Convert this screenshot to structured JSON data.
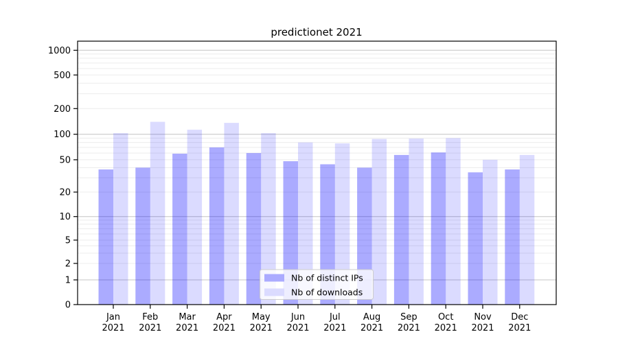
{
  "chart_data": {
    "type": "bar",
    "title": "predictionet 2021",
    "categories": [
      "Jan",
      "Feb",
      "Mar",
      "Apr",
      "May",
      "Jun",
      "Jul",
      "Aug",
      "Sep",
      "Oct",
      "Nov",
      "Dec"
    ],
    "category_year": "2021",
    "series": [
      {
        "name": "Nb of distinct IPs",
        "fill": "rgba(0,0,255,0.33)",
        "legend_color": "#ababff",
        "values": [
          38,
          40,
          59,
          70,
          60,
          48,
          44,
          40,
          57,
          61,
          35,
          38
        ]
      },
      {
        "name": "Nb of downloads",
        "fill": "rgba(0,0,255,0.14)",
        "legend_color": "#dbdbff",
        "values": [
          103,
          140,
          113,
          136,
          103,
          80,
          78,
          88,
          89,
          90,
          50,
          57
        ]
      }
    ],
    "y_ticks": [
      0,
      1,
      2,
      5,
      10,
      20,
      50,
      100,
      200,
      500,
      1000
    ],
    "y_scale": "symlog",
    "ylim": [
      0,
      1250
    ],
    "grid": true,
    "grid_major_color": "#c4c4c4",
    "grid_minor_color": "#ececec",
    "legend_position": "lower center",
    "legend_border_color": "#cccccc"
  }
}
